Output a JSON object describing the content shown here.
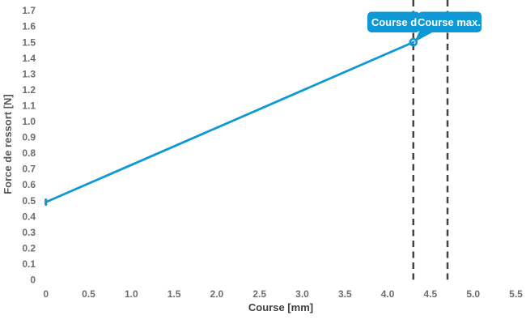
{
  "chart_data": {
    "type": "line",
    "title": "",
    "xlabel": "Course [mm]",
    "ylabel": "Force de ressort [N]",
    "xlim": [
      0,
      5.5
    ],
    "ylim": [
      0,
      1.7
    ],
    "grid": false,
    "legend": "none",
    "x_ticks": [
      "0",
      "0.5",
      "1.0",
      "1.5",
      "2.0",
      "2.5",
      "3.0",
      "3.5",
      "4.0",
      "4.5",
      "5.0",
      "5.5"
    ],
    "y_ticks": [
      "1.7",
      "1.6",
      "1.5",
      "1.4",
      "1.3",
      "1.2",
      "1.1",
      "1.0",
      "0.9",
      "0.8",
      "0.7",
      "0.6",
      "0.5",
      "0.4",
      "0.3",
      "0.2",
      "0.1",
      "0"
    ],
    "series": [
      {
        "name": "Force de ressort",
        "points": [
          {
            "x": 0,
            "y": 0.49
          },
          {
            "x": 4.3,
            "y": 1.5
          }
        ],
        "color": "#0e99d6",
        "marker_start": "tick-bar",
        "marker_end": "open-circle"
      }
    ],
    "reference_lines": [
      {
        "x": 4.3,
        "label": "Course d",
        "style": "dashed"
      },
      {
        "x": 4.7,
        "label": "Course max.",
        "style": "dashed"
      }
    ],
    "tooltip": {
      "labels": [
        "Course d",
        "Course max."
      ],
      "bg_color": "#0e99d6",
      "text_color": "#ffffff"
    },
    "style": {
      "line_color": "#0e99d6",
      "dash_color": "#424242",
      "tick_label_color": "#6d6d6d",
      "x_title_color": "#3f3f3f",
      "y_title_color": "#585858",
      "background": "#ffffff"
    }
  }
}
